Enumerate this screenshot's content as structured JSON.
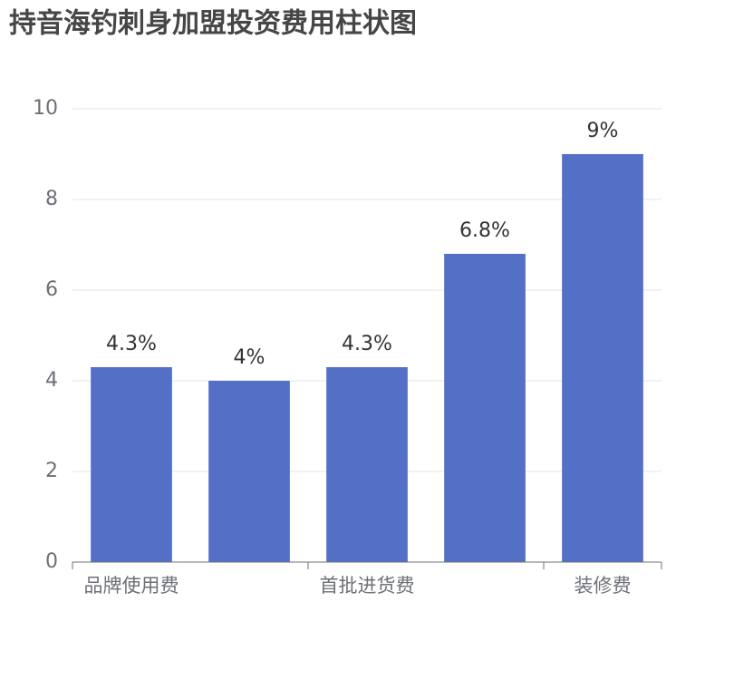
{
  "chart_data": {
    "type": "bar",
    "title": "持音海钓刺身加盟投资费用柱状图",
    "categories": [
      "品牌使用费",
      null,
      "首批进货费",
      null,
      "装修费"
    ],
    "values": [
      4.3,
      4,
      4.3,
      6.8,
      9
    ],
    "value_labels": [
      "4.3%",
      "4%",
      "4.3%",
      "6.8%",
      "9%"
    ],
    "color": "#5470c6",
    "ylim": [
      0,
      10
    ],
    "yticks": [
      0,
      2,
      4,
      6,
      8,
      10
    ],
    "grid": true
  }
}
